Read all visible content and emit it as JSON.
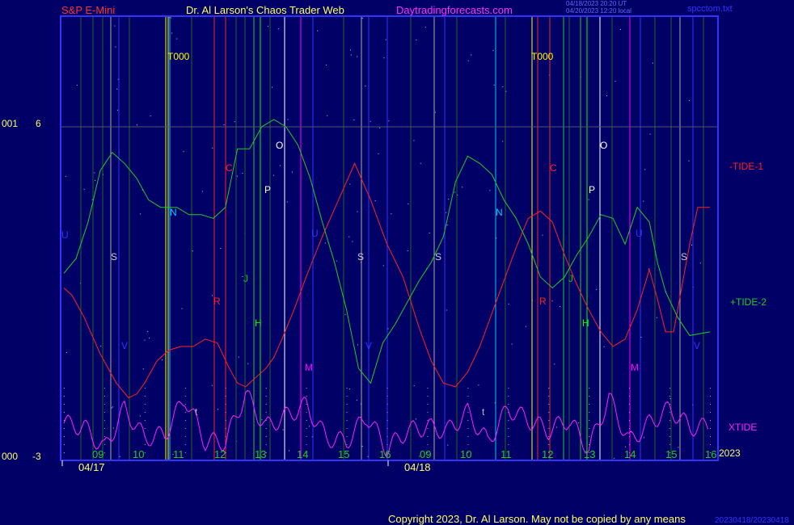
{
  "header": {
    "symbol": "S&P E-Mini",
    "author": "Dr. Al Larson's Chaos Trader Web",
    "site": "Daytradingforecasts.com",
    "stamp1": "04/18/2023 20:20 UT",
    "stamp2": "04/20/2023 12:20 local",
    "file": "spcctom.txt"
  },
  "footer": {
    "copyright": "Copyright 2023, Dr. Al Larson. May not be copied by any means",
    "year": "2023",
    "code": "20230418/20230418"
  },
  "y_axis": {
    "top_code": "001",
    "top_value": "6",
    "bottom_code": "000",
    "bottom_value": "-3"
  },
  "dates": [
    "04/17",
    "04/18"
  ],
  "hour_labels": [
    "09",
    "10",
    "11",
    "12",
    "13",
    "14",
    "15",
    "16",
    "09",
    "10",
    "11",
    "12",
    "13",
    "14",
    "15",
    "16"
  ],
  "markers": [
    {
      "t": "T000",
      "c": "#ffff00"
    },
    {
      "t": "T000",
      "c": "#ffff00"
    },
    {
      "t": "N",
      "c": "#00ccff"
    },
    {
      "t": "N",
      "c": "#00ccff"
    },
    {
      "t": "S",
      "c": "#cccccc"
    },
    {
      "t": "S",
      "c": "#cccccc"
    },
    {
      "t": "S",
      "c": "#cccccc"
    },
    {
      "t": "S",
      "c": "#cccccc"
    },
    {
      "t": "U",
      "c": "#3333ff"
    },
    {
      "t": "U",
      "c": "#3333ff"
    },
    {
      "t": "U",
      "c": "#3333ff"
    },
    {
      "t": "V",
      "c": "#3333ff"
    },
    {
      "t": "V",
      "c": "#3333ff"
    },
    {
      "t": "V",
      "c": "#3333ff"
    },
    {
      "t": "C",
      "c": "#ff2222"
    },
    {
      "t": "C",
      "c": "#ff2222"
    },
    {
      "t": "R",
      "c": "#ff2222"
    },
    {
      "t": "R",
      "c": "#ff2222"
    },
    {
      "t": "O",
      "c": "#ffffff"
    },
    {
      "t": "O",
      "c": "#ffffff"
    },
    {
      "t": "P",
      "c": "#ffffff"
    },
    {
      "t": "P",
      "c": "#ffffff"
    },
    {
      "t": "J",
      "c": "#00cc00"
    },
    {
      "t": "J",
      "c": "#00cc00"
    },
    {
      "t": "H",
      "c": "#00ff00"
    },
    {
      "t": "H",
      "c": "#00ff00"
    },
    {
      "t": "M",
      "c": "#ff00ff"
    },
    {
      "t": "M",
      "c": "#ff00ff"
    },
    {
      "t": "t",
      "c": "#bbbbbb"
    },
    {
      "t": "t",
      "c": "#bbbbbb"
    }
  ],
  "series_labels": {
    "tide1": "-TIDE-1",
    "tide2": "+TIDE-2",
    "xtide": "XTIDE"
  },
  "colors": {
    "background": "#000066",
    "frame": "#3333ff",
    "tide1": "#ff2222",
    "tide2": "#22cc22",
    "xtide": "#ff22ff",
    "header_red": "#ff3333",
    "header_yellow": "#ffff66",
    "header_magenta": "#ff33ff"
  },
  "chart_data": {
    "type": "line",
    "ylim": [
      -3,
      6
    ],
    "xlim": [
      0,
      16
    ],
    "x_unit": "trading hours (04/17 09:00 = 0, 04/18 09:00 = 8)",
    "series": [
      {
        "name": "-TIDE-1",
        "color": "#ff2222",
        "x": [
          0,
          0.2,
          0.5,
          0.9,
          1.3,
          1.6,
          1.8,
          2.0,
          2.3,
          2.6,
          2.9,
          3.2,
          3.5,
          3.8,
          4.1,
          4.3,
          4.5,
          4.7,
          5.0,
          5.2,
          5.4,
          5.7,
          6.0,
          6.4,
          6.8,
          7.2,
          7.6,
          8.0,
          8.4,
          8.8,
          9.1,
          9.4,
          9.7,
          10.0,
          10.3,
          10.6,
          10.9,
          11.2,
          11.5,
          11.8,
          12.1,
          12.4,
          12.7,
          13.0,
          13.3,
          13.6,
          13.9,
          14.2,
          14.5,
          14.7,
          14.9,
          15.1,
          15.3,
          15.5,
          15.7,
          16.0
        ],
        "y": [
          1.6,
          1.4,
          0.8,
          -0.2,
          -1.0,
          -1.4,
          -1.3,
          -1.0,
          -0.4,
          -0.1,
          0.0,
          0.0,
          0.2,
          0.1,
          -0.6,
          -1.0,
          -1.1,
          -0.9,
          -0.6,
          -0.3,
          0.2,
          1.0,
          1.9,
          3.0,
          4.0,
          5.0,
          4.0,
          2.8,
          1.9,
          0.5,
          -0.4,
          -1.0,
          -1.1,
          -0.7,
          0.0,
          0.9,
          1.8,
          2.7,
          3.5,
          3.7,
          3.4,
          2.5,
          1.7,
          1.0,
          0.4,
          0.0,
          0.2,
          1.0,
          2.1,
          1.3,
          0.4,
          0.4,
          1.6,
          2.8,
          3.8,
          3.8
        ]
      },
      {
        "name": "+TIDE-2",
        "color": "#22cc22",
        "x": [
          0,
          0.3,
          0.6,
          0.9,
          1.2,
          1.5,
          1.8,
          2.1,
          2.4,
          2.8,
          3.1,
          3.4,
          3.7,
          4.0,
          4.3,
          4.6,
          4.9,
          5.2,
          5.5,
          5.8,
          6.1,
          6.4,
          6.7,
          7.0,
          7.3,
          7.6,
          7.9,
          8.2,
          8.5,
          8.8,
          9.1,
          9.4,
          9.7,
          10.0,
          10.3,
          10.6,
          10.9,
          11.2,
          11.5,
          11.8,
          12.1,
          12.4,
          12.7,
          13.0,
          13.3,
          13.6,
          13.9,
          14.2,
          14.5,
          14.7,
          14.9,
          15.2,
          15.5,
          16.0
        ],
        "y": [
          2.0,
          2.4,
          3.4,
          4.8,
          5.3,
          5.0,
          4.6,
          4.0,
          3.8,
          3.8,
          3.6,
          3.6,
          3.5,
          3.8,
          5.4,
          5.4,
          6.0,
          6.2,
          6.0,
          5.5,
          4.6,
          3.4,
          2.3,
          1.0,
          -0.6,
          -1.0,
          0.1,
          0.6,
          1.2,
          1.8,
          2.3,
          3.0,
          4.5,
          5.2,
          5.0,
          4.7,
          4.0,
          3.5,
          2.8,
          1.9,
          1.6,
          1.9,
          2.5,
          3.0,
          3.6,
          3.5,
          2.8,
          3.8,
          3.4,
          2.3,
          1.5,
          0.8,
          0.3,
          0.4
        ]
      },
      {
        "name": "XTIDE",
        "color": "#ff22ff",
        "x": [
          0,
          0.5,
          1.0,
          1.5,
          2.0,
          2.5,
          3.0,
          3.5,
          4.0,
          4.5,
          5.0,
          5.5,
          6.0,
          6.5,
          7.0,
          7.5,
          8.0,
          8.5,
          9.0,
          9.5,
          10.0,
          10.5,
          11.0,
          11.5,
          12.0,
          12.5,
          13.0,
          13.5,
          14.0,
          14.5,
          15.0,
          15.5,
          16.0
        ],
        "y": [
          -2.1,
          -2.2,
          -2.8,
          -1.7,
          -2.5,
          -2.4,
          -1.4,
          -2.6,
          -2.6,
          -1.3,
          -2.2,
          -1.9,
          -1.6,
          -2.5,
          -2.6,
          -1.9,
          -2.8,
          -2.3,
          -2.2,
          -2.3,
          -1.8,
          -2.6,
          -1.7,
          -2.0,
          -2.3,
          -2.0,
          -2.8,
          -1.4,
          -2.6,
          -2.1,
          -1.7,
          -2.2,
          -2.2
        ]
      }
    ]
  }
}
